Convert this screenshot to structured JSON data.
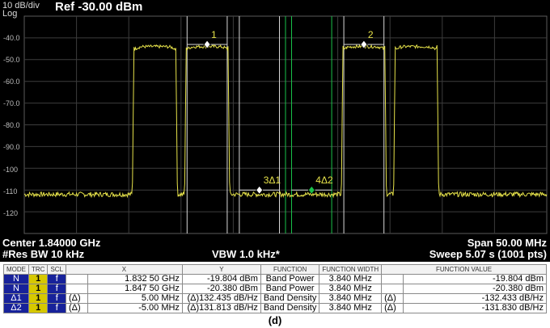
{
  "header": {
    "scale": "10 dB/div",
    "scale_type": "Log",
    "ref_level": "Ref -30.00 dBm"
  },
  "y_ticks": [
    "-40.0",
    "-50.0",
    "-60.0",
    "-70.0",
    "-80.0",
    "-90.0",
    "-100",
    "-110",
    "-120"
  ],
  "markers": [
    {
      "label": "1",
      "freq_offset_mhz": -7.5,
      "level_dbm": -43
    },
    {
      "label": "2",
      "freq_offset_mhz": 7.5,
      "level_dbm": -43
    },
    {
      "label": "3Δ1",
      "freq_offset_mhz": -2.5,
      "level_dbm": -110
    },
    {
      "label": "4Δ2",
      "freq_offset_mhz": 2.5,
      "level_dbm": -110
    }
  ],
  "footer": {
    "center": "Center 1.84000 GHz",
    "res_bw": "#Res BW 10 kHz",
    "vbw": "VBW 1.0 kHz*",
    "span": "Span 50.00 MHz",
    "sweep": "Sweep  5.07 s (1001 pts)"
  },
  "table": {
    "headers": [
      "MODE",
      "TRC",
      "SCL",
      "X",
      "Y",
      "FUNCTION",
      "FUNCTION WIDTH",
      "FUNCTION VALUE"
    ],
    "rows": [
      {
        "mode": "N",
        "trc": "1",
        "scl": "f",
        "x_flag": "",
        "x": "1.832 50 GHz",
        "y": "-19.804 dBm",
        "function": "Band Power",
        "width": "3.840 MHz",
        "v_flag": "",
        "value": "-19.804 dBm"
      },
      {
        "mode": "N",
        "trc": "1",
        "scl": "f",
        "x_flag": "",
        "x": "1.847 50 GHz",
        "y": "-20.380 dBm",
        "function": "Band Power",
        "width": "3.840 MHz",
        "v_flag": "",
        "value": "-20.380 dBm"
      },
      {
        "mode": "Δ1",
        "trc": "1",
        "scl": "f",
        "x_flag": "(Δ)",
        "x": "5.00 MHz",
        "y": "(Δ)132.435 dB/Hz",
        "function": "Band Density",
        "width": "3.840 MHz",
        "v_flag": "(Δ)",
        "value": "-132.433 dB/Hz"
      },
      {
        "mode": "Δ2",
        "trc": "1",
        "scl": "f",
        "x_flag": "(Δ)",
        "x": "-5.00 MHz",
        "y": "(Δ)131.813 dB/Hz",
        "function": "Band Density",
        "width": "3.840 MHz",
        "v_flag": "(Δ)",
        "value": "-131.830 dB/Hz"
      }
    ]
  },
  "caption": "(d)",
  "colors": {
    "trace": "#e6e24a",
    "grid": "#3d3d3d",
    "band_line": "#d8d8d8",
    "active_line": "#19c24a",
    "mode_cell": "#17229a",
    "trc_cell": "#d6c800"
  }
}
